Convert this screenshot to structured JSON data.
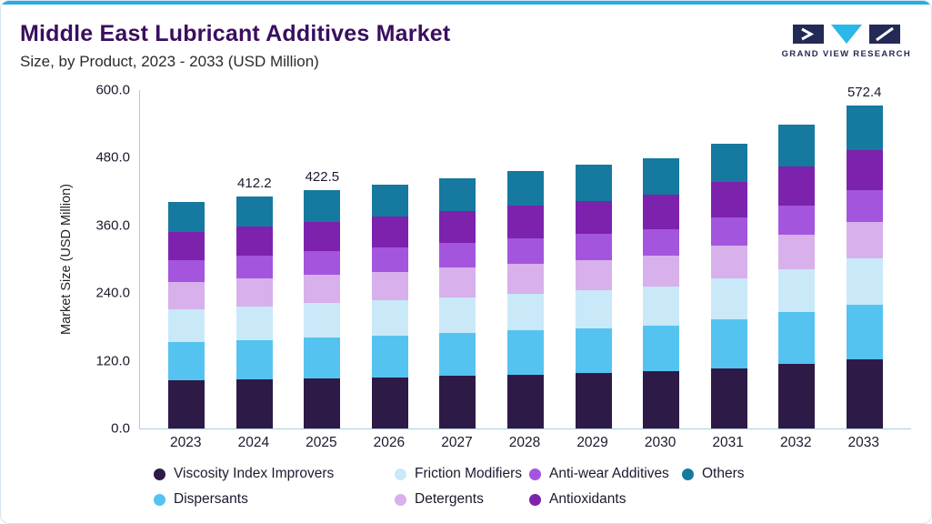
{
  "colors": {
    "accent_line": "#29abe2",
    "title": "#3a0e5f",
    "subtitle": "#2b2b2b",
    "axis_line": "#aacfdd",
    "text": "#1a1a2e",
    "logo_navy": "#232a56",
    "logo_cyan": "#29b8e8",
    "card_border": "#d5e3ec",
    "card_bg": "#ffffff"
  },
  "header": {
    "title": "Middle East Lubricant Additives Market",
    "subtitle": "Size, by Product, 2023 - 2033 (USD Million)",
    "logo_text": "GRAND VIEW RESEARCH"
  },
  "chart_data": {
    "type": "bar",
    "stacked": true,
    "title": "Middle East Lubricant Additives Market Size, by Product, 2023 - 2033 (USD Million)",
    "xlabel": "",
    "ylabel": "Market Size (USD Million)",
    "ylim": [
      0,
      600
    ],
    "ytick_labels": [
      "0.0",
      "120.0",
      "240.0",
      "360.0",
      "480.0",
      "600.0"
    ],
    "grid": false,
    "legend_position": "bottom",
    "categories": [
      "2023",
      "2024",
      "2025",
      "2026",
      "2027",
      "2028",
      "2029",
      "2030",
      "2031",
      "2032",
      "2033"
    ],
    "series": [
      {
        "name": "Viscosity Index Improvers",
        "color": "#2e1a47",
        "values": [
          85,
          87,
          89,
          91,
          93,
          96,
          98,
          101,
          107,
          114,
          122
        ]
      },
      {
        "name": "Dispersants",
        "color": "#55c3f0",
        "values": [
          68,
          70,
          72,
          74,
          76,
          78,
          80,
          82,
          87,
          92,
          98
        ]
      },
      {
        "name": "Friction Modifiers",
        "color": "#c9e9f9",
        "values": [
          58,
          60,
          61,
          62,
          64,
          65,
          67,
          68,
          72,
          76,
          81
        ]
      },
      {
        "name": "Detergents",
        "color": "#d7b0ec",
        "values": [
          48,
          49,
          50,
          51,
          52,
          53,
          54,
          55,
          58,
          61,
          65
        ]
      },
      {
        "name": "Anti-wear Additives",
        "color": "#a455dd",
        "values": [
          40,
          41,
          42,
          43,
          44,
          45,
          46,
          47,
          50,
          53,
          56
        ]
      },
      {
        "name": "Antioxidants",
        "color": "#7d22ad",
        "values": [
          50,
          51,
          53,
          55,
          56,
          58,
          59,
          61,
          64,
          68,
          72
        ]
      },
      {
        "name": "Others",
        "color": "#16799f",
        "values": [
          52,
          54.2,
          55.5,
          57,
          59,
          61,
          63,
          65,
          67,
          74,
          78.4
        ]
      }
    ],
    "totals": [
      401,
      412.2,
      422.5,
      433,
      444,
      456,
      467,
      479,
      505,
      538,
      572.4
    ],
    "total_labels": [
      "",
      "412.2",
      "422.5",
      "",
      "",
      "",
      "",
      "",
      "",
      "",
      "572.4"
    ]
  },
  "legend": {
    "order": [
      "Viscosity Index Improvers",
      "Friction Modifiers",
      "Anti-wear Additives",
      "Others",
      "Dispersants",
      "Detergents",
      "Antioxidants"
    ]
  }
}
